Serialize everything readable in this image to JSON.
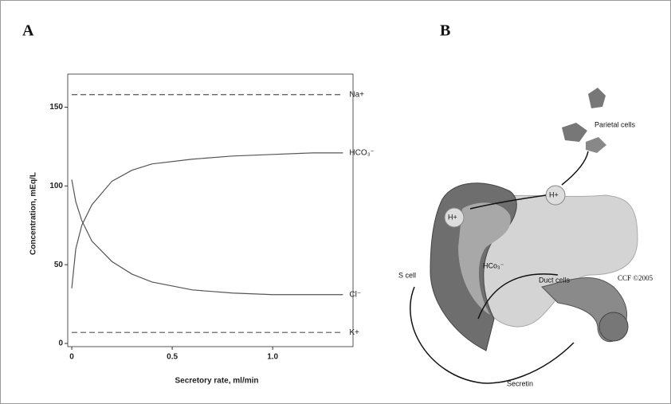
{
  "panel_a": {
    "label": "A"
  },
  "panel_b": {
    "label": "B",
    "parietal_cells": "Parietal cells",
    "h_plus_1": "H+",
    "h_plus_2": "H+",
    "hco3": "HCo₃⁻",
    "s_cell": "S cell",
    "duct_cells": "Duct cells",
    "secretin": "Secretin",
    "credit": "CCF ©2005"
  },
  "chart_data": {
    "type": "line",
    "xlabel": "Secretory rate, ml/min",
    "ylabel": "Concentration, mEq/L",
    "x": [
      0,
      0.02,
      0.05,
      0.1,
      0.2,
      0.3,
      0.4,
      0.6,
      0.8,
      1.0,
      1.2,
      1.35
    ],
    "series": [
      {
        "name": "Na+",
        "color": "#555555",
        "style": "dashed",
        "values": [
          158,
          158,
          158,
          158,
          158,
          158,
          158,
          158,
          158,
          158,
          158,
          158
        ]
      },
      {
        "name": "HCO₃⁻",
        "color": "#555555",
        "style": "solid",
        "values": [
          35,
          60,
          75,
          88,
          103,
          110,
          114,
          117,
          119,
          120,
          121,
          121
        ]
      },
      {
        "name": "Cl⁻",
        "color": "#555555",
        "style": "solid",
        "values": [
          104,
          90,
          78,
          65,
          52,
          44,
          39,
          34,
          32,
          31,
          31,
          31
        ]
      },
      {
        "name": "K+",
        "color": "#555555",
        "style": "dashed",
        "values": [
          7,
          7,
          7,
          7,
          7,
          7,
          7,
          7,
          7,
          7,
          7,
          7
        ]
      }
    ],
    "xlim": [
      -0.02,
      1.4
    ],
    "ylim": [
      0,
      170
    ],
    "xticks": [
      0,
      0.5,
      {
        "value": 1,
        "label": "1.0"
      }
    ],
    "yticks": [
      0,
      50,
      100,
      150
    ]
  }
}
